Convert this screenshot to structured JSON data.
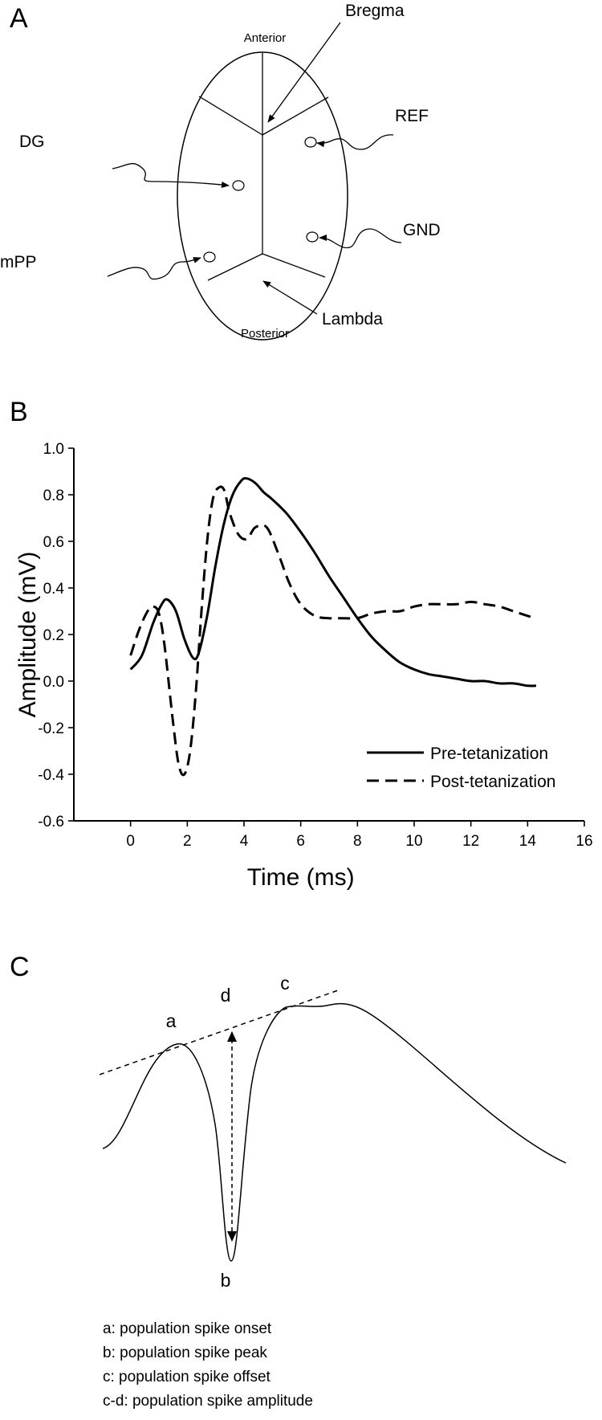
{
  "panel_a": {
    "letter": "A",
    "labels": {
      "anterior": "Anterior",
      "posterior": "Posterior",
      "bregma": "Bregma",
      "lambda": "Lambda",
      "ref": "REF",
      "gnd": "GND",
      "dg": "DG",
      "mpp": "mPP"
    }
  },
  "panel_c": {
    "letter": "C",
    "points": {
      "a": "a",
      "b": "b",
      "c": "c",
      "d": "d"
    },
    "descriptions": [
      "a: population spike onset",
      "b: population spike peak",
      "c: population spike offset",
      "c-d: population spike amplitude"
    ]
  },
  "chart_data": {
    "type": "line",
    "panel_letter": "B",
    "title": "",
    "xlabel": "Time (ms)",
    "ylabel": "Amplitude (mV)",
    "xlim": [
      -2,
      16
    ],
    "ylim": [
      -0.6,
      1.0
    ],
    "xticks": [
      "0",
      "2",
      "4",
      "6",
      "8",
      "10",
      "12",
      "14",
      "16"
    ],
    "yticks": [
      "-0.6",
      "-0.4",
      "-0.2",
      "0.0",
      "0.2",
      "0.4",
      "0.6",
      "0.8",
      "1.0"
    ],
    "grid": false,
    "legend_position": "bottom-right",
    "series": [
      {
        "name": "Pre-tetanization",
        "style": "solid",
        "x": [
          0,
          0.4,
          0.8,
          1.1,
          1.3,
          1.6,
          1.9,
          2.2,
          2.4,
          2.7,
          3.0,
          3.3,
          3.6,
          3.9,
          4.1,
          4.4,
          4.7,
          5.0,
          5.5,
          6.0,
          6.5,
          7.0,
          7.5,
          8.0,
          8.5,
          9.0,
          9.5,
          10.0,
          10.5,
          11.0,
          11.5,
          12.0,
          12.5,
          13.0,
          13.5,
          14.0,
          14.3
        ],
        "y": [
          0.05,
          0.11,
          0.25,
          0.33,
          0.35,
          0.3,
          0.18,
          0.1,
          0.12,
          0.28,
          0.5,
          0.68,
          0.8,
          0.86,
          0.87,
          0.85,
          0.81,
          0.78,
          0.72,
          0.64,
          0.55,
          0.45,
          0.36,
          0.27,
          0.19,
          0.13,
          0.08,
          0.05,
          0.03,
          0.02,
          0.01,
          0.0,
          0.0,
          -0.01,
          -0.01,
          -0.02,
          -0.02
        ]
      },
      {
        "name": "Post-tetanization",
        "style": "dashed",
        "x": [
          0,
          0.3,
          0.6,
          0.8,
          1.0,
          1.2,
          1.5,
          1.7,
          1.9,
          2.1,
          2.3,
          2.5,
          2.7,
          2.9,
          3.1,
          3.3,
          3.5,
          3.8,
          4.1,
          4.4,
          4.8,
          5.2,
          5.6,
          6.0,
          6.5,
          7.0,
          7.5,
          8.0,
          8.5,
          9.0,
          9.5,
          10.0,
          10.5,
          11.0,
          11.5,
          12.0,
          12.5,
          13.0,
          13.5,
          14.0,
          14.3
        ],
        "y": [
          0.11,
          0.22,
          0.3,
          0.32,
          0.29,
          0.15,
          -0.18,
          -0.36,
          -0.4,
          -0.3,
          -0.05,
          0.3,
          0.6,
          0.78,
          0.83,
          0.82,
          0.72,
          0.63,
          0.61,
          0.66,
          0.66,
          0.55,
          0.42,
          0.33,
          0.28,
          0.27,
          0.27,
          0.27,
          0.29,
          0.3,
          0.3,
          0.32,
          0.33,
          0.33,
          0.33,
          0.34,
          0.33,
          0.32,
          0.3,
          0.28,
          0.27
        ]
      }
    ]
  }
}
